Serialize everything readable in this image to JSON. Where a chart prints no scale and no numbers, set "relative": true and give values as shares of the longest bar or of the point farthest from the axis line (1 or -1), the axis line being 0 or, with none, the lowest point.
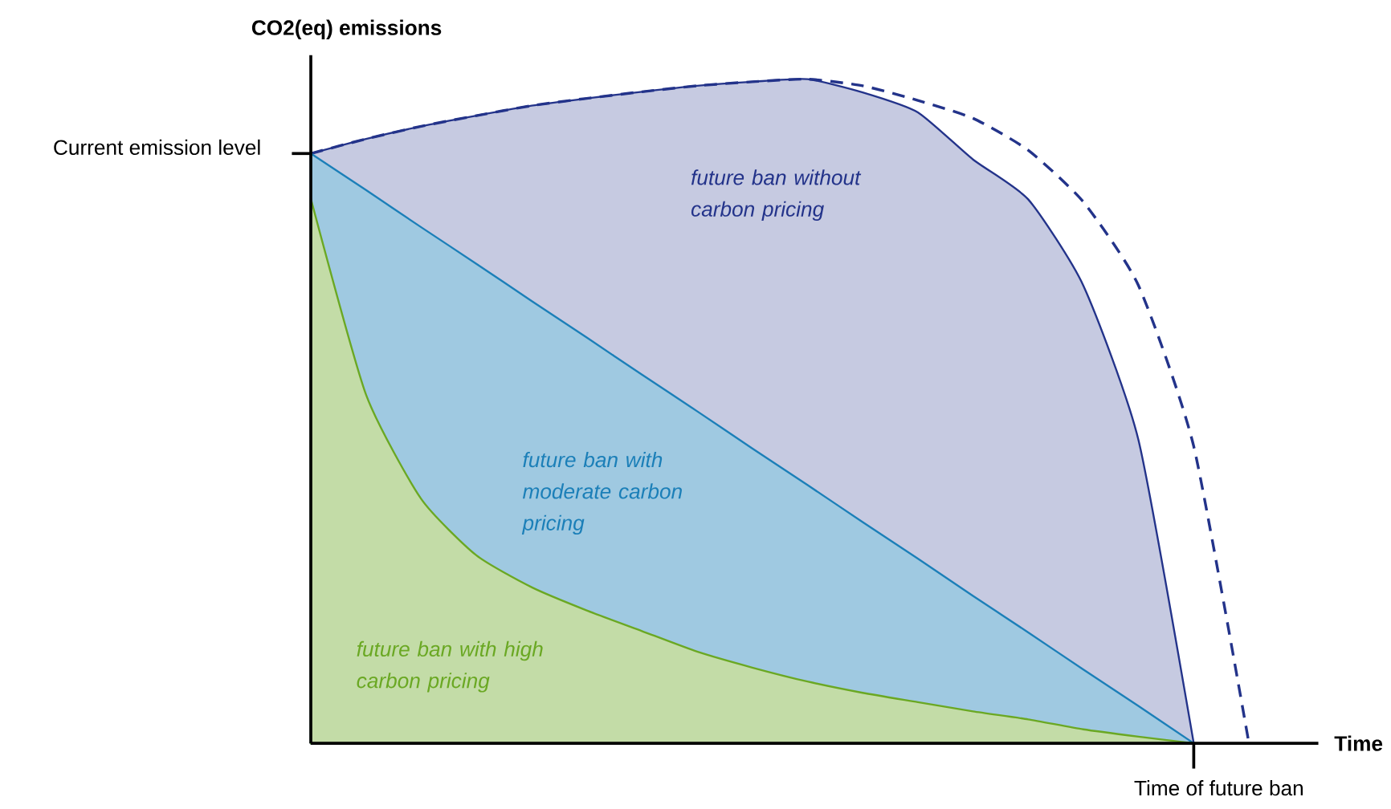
{
  "chart_data": {
    "type": "area",
    "relative": true,
    "xlabel": "Time",
    "ylabel": "CO2(eq) emissions",
    "categories": [
      null,
      null,
      null,
      null,
      null,
      null,
      null,
      null,
      null,
      null,
      null,
      null,
      null,
      null,
      null,
      null,
      null,
      null
    ],
    "series": [
      {
        "name": "future ban without carbon pricing",
        "color": "#23338a",
        "values": [
          0.888,
          0.91,
          0.929,
          0.945,
          0.96,
          0.971,
          0.981,
          0.99,
          0.996,
          1.0,
          0.98,
          0.95,
          0.879,
          0.819,
          0.689,
          0.456,
          0,
          null
        ]
      },
      {
        "type": "line",
        "line_style": "dashed",
        "color": "#23338a",
        "values": [
          0.888,
          0.91,
          0.929,
          0.945,
          0.96,
          0.971,
          0.981,
          0.99,
          0.996,
          1.0,
          0.99,
          0.968,
          0.941,
          0.893,
          0.815,
          0.689,
          0.447,
          0
        ]
      },
      {
        "name": "future ban with moderate carbon pricing",
        "color": "#1b7fb8",
        "values": [
          0.888,
          0.833,
          0.777,
          0.722,
          0.666,
          0.611,
          0.555,
          0.5,
          0.444,
          0.389,
          0.333,
          0.278,
          0.222,
          0.167,
          0.111,
          0.056,
          0,
          null
        ]
      },
      {
        "name": "future ban with high carbon pricing",
        "color": "#6aa823",
        "values": [
          0.82,
          0.525,
          0.368,
          0.283,
          0.235,
          0.2,
          0.169,
          0.138,
          0.114,
          0.093,
          0.076,
          0.062,
          0.048,
          0.036,
          0.021,
          0.01,
          0,
          null
        ]
      }
    ],
    "annotations": [
      "Current emission level",
      "Time of future ban"
    ],
    "grid": false
  }
}
